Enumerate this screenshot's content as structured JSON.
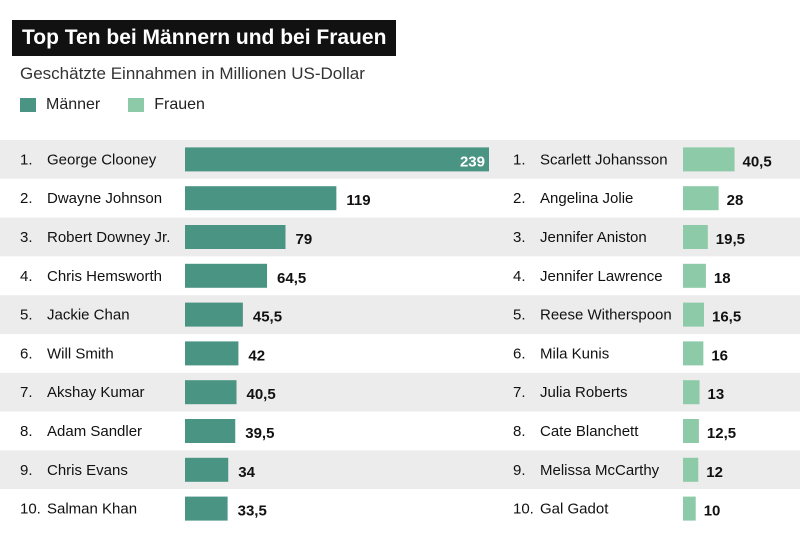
{
  "header": {
    "title": "Top Ten bei Männern und bei Frauen",
    "subtitle": "Geschätzte Einnahmen in Millionen US-Dollar"
  },
  "legend": [
    {
      "name": "Männer",
      "color": "#4a9484"
    },
    {
      "name": "Frauen",
      "color": "#8ccaa8"
    }
  ],
  "colors": {
    "stripe": "#ececec",
    "background": "#ffffff"
  },
  "chart_data": [
    {
      "type": "bar",
      "orientation": "horizontal",
      "series_name": "Männer",
      "xlim": [
        0,
        239
      ],
      "grid": false,
      "ranks": [
        "1.",
        "2.",
        "3.",
        "4.",
        "5.",
        "6.",
        "7.",
        "8.",
        "9.",
        "10."
      ],
      "categories": [
        "George Clooney",
        "Dwayne Johnson",
        "Robert Downey Jr.",
        "Chris Hemsworth",
        "Jackie Chan",
        "Will Smith",
        "Akshay Kumar",
        "Adam Sandler",
        "Chris Evans",
        "Salman Khan"
      ],
      "values": [
        239,
        119,
        79,
        64.5,
        45.5,
        42,
        40.5,
        39.5,
        34,
        33.5
      ],
      "value_labels": [
        "239",
        "119",
        "79",
        "64,5",
        "45,5",
        "42",
        "40,5",
        "39,5",
        "34",
        "33,5"
      ]
    },
    {
      "type": "bar",
      "orientation": "horizontal",
      "series_name": "Frauen",
      "xlim": [
        0,
        239
      ],
      "grid": false,
      "ranks": [
        "1.",
        "2.",
        "3.",
        "4.",
        "5.",
        "6.",
        "7.",
        "8.",
        "9.",
        "10."
      ],
      "categories": [
        "Scarlett Johansson",
        "Angelina Jolie",
        "Jennifer Aniston",
        "Jennifer Lawrence",
        "Reese Witherspoon",
        "Mila Kunis",
        "Julia Roberts",
        "Cate Blanchett",
        "Melissa McCarthy",
        "Gal Gadot"
      ],
      "values": [
        40.5,
        28,
        19.5,
        18,
        16.5,
        16,
        13,
        12.5,
        12,
        10
      ],
      "value_labels": [
        "40,5",
        "28",
        "19,5",
        "18",
        "16,5",
        "16",
        "13",
        "12,5",
        "12",
        "10"
      ]
    }
  ]
}
